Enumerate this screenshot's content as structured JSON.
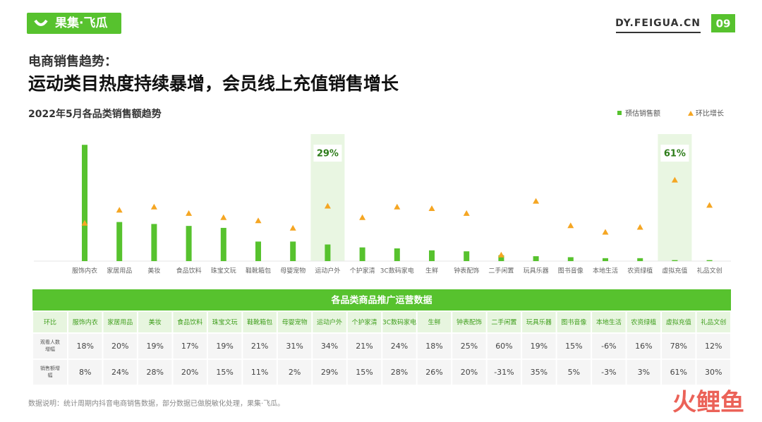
{
  "header": {
    "logo": "果集·飞瓜",
    "site": "DY.FEIGUA.CN",
    "page": "09",
    "subtitle": "电商销售趋势：",
    "title": "运动类目热度持续暴增，会员线上充值销售增长"
  },
  "chart_data": {
    "type": "bar",
    "title": "2022年5月各品类销售额趋势",
    "categories": [
      "服饰内衣",
      "家居用品",
      "美妆",
      "食品饮料",
      "珠宝文玩",
      "鞋靴箱包",
      "母婴宠物",
      "运动户外",
      "个护家清",
      "3C数码家电",
      "生鲜",
      "钟表配饰",
      "二手闲置",
      "玩具乐器",
      "图书音像",
      "本地生活",
      "农资绿植",
      "虚拟充值",
      "礼品文创"
    ],
    "series": [
      {
        "name": "预估销售额",
        "color": "#57c22e",
        "values": [
          119,
          40,
          38,
          36,
          34,
          20,
          20,
          17,
          14,
          13,
          11,
          10,
          6,
          5,
          4,
          3,
          3,
          1,
          1
        ]
      },
      {
        "name": "环比增长",
        "color": "#f5a623",
        "axis": "y2",
        "values": [
          8,
          24,
          28,
          20,
          15,
          11,
          2,
          29,
          15,
          28,
          26,
          20,
          -31,
          35,
          5,
          -3,
          3,
          61,
          30
        ],
        "value_labels": [
          null,
          null,
          null,
          null,
          null,
          null,
          null,
          "29%",
          null,
          null,
          null,
          null,
          null,
          null,
          null,
          null,
          null,
          "61%",
          null
        ]
      }
    ],
    "ylim": [
      0,
      130
    ],
    "y2lim": [
      -39,
      117
    ],
    "legend": "top-right"
  },
  "table": {
    "title": "各品类商品推广运营数据",
    "header": [
      "环比",
      "服饰内衣",
      "家居用品",
      "美妆",
      "食品饮料",
      "珠宝文玩",
      "鞋靴箱包",
      "母婴宠物",
      "运动户外",
      "个护家清",
      "3C数码家电",
      "生鲜",
      "钟表配饰",
      "二手闲置",
      "玩具乐器",
      "图书音像",
      "本地生活",
      "农资绿植",
      "虚拟充值",
      "礼品文创"
    ],
    "rows": [
      [
        "观看人数增幅",
        "18%",
        "20%",
        "19%",
        "17%",
        "19%",
        "21%",
        "31%",
        "34%",
        "21%",
        "24%",
        "18%",
        "25%",
        "60%",
        "19%",
        "15%",
        "-6%",
        "16%",
        "78%",
        "12%"
      ],
      [
        "销售额增幅",
        "8%",
        "24%",
        "28%",
        "20%",
        "15%",
        "11%",
        "2%",
        "29%",
        "15%",
        "28%",
        "26%",
        "20%",
        "-31%",
        "35%",
        "5%",
        "-3%",
        "3%",
        "61%",
        "30%"
      ]
    ]
  },
  "footer": {
    "note": "数据说明：统计周期内抖音电商销售数据，部分数据已做脱敏化处理，果集·飞瓜。",
    "watermark": "火鲤鱼"
  }
}
